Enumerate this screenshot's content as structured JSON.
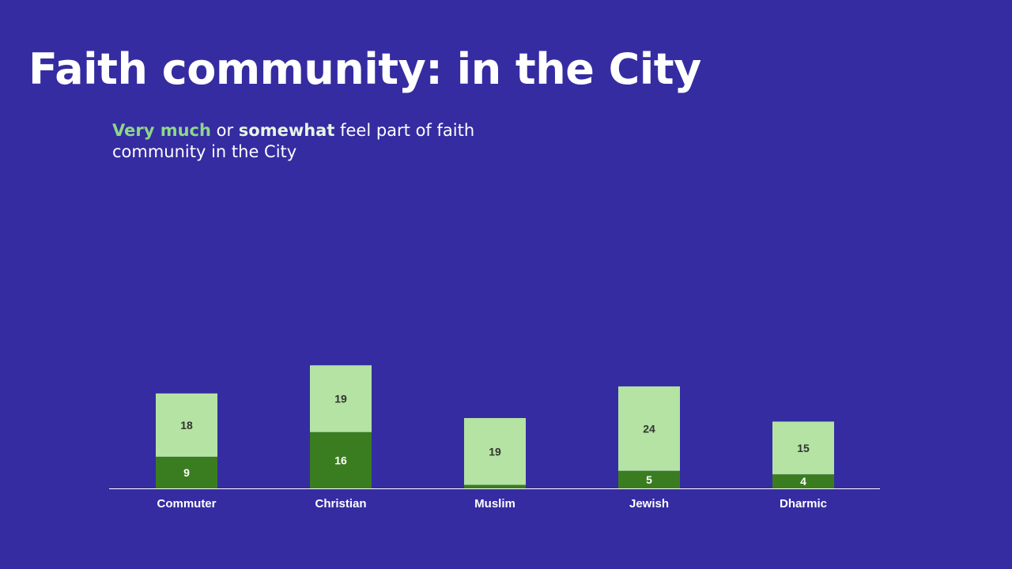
{
  "header": {
    "title": "Faith community: in the City"
  },
  "subtitle": {
    "very_much": "Very much",
    "or": " or ",
    "somewhat": "somewhat",
    "rest": " feel part of faith community in the City"
  },
  "colors": {
    "background": "#352ca2",
    "very_much": "#3a7d21",
    "somewhat": "#b4e3a3",
    "very_much_label": "#ffffff",
    "somewhat_label": "#333333",
    "axis": "#ffffff"
  },
  "chart_data": {
    "type": "bar",
    "stacked": true,
    "title": "Faith community: in the City",
    "categories": [
      "Commuter",
      "Christian",
      "Muslim",
      "Jewish",
      "Dharmic"
    ],
    "series": [
      {
        "name": "Very much",
        "values": [
          9,
          16,
          1,
          5,
          4
        ],
        "labels": [
          "9",
          "16",
          "",
          "5",
          "4"
        ]
      },
      {
        "name": "Somewhat",
        "values": [
          18,
          19,
          19,
          24,
          15
        ],
        "labels": [
          "18",
          "19",
          "19",
          "24",
          "15"
        ]
      }
    ],
    "ylim": [
      0,
      40
    ],
    "grid": false,
    "legend": "none"
  }
}
